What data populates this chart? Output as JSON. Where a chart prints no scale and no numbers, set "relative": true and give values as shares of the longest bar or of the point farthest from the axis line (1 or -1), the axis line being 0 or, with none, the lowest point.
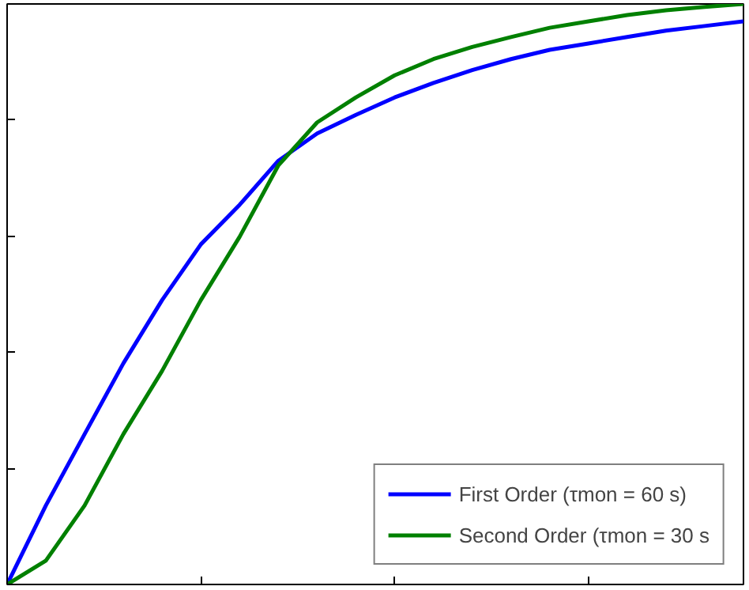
{
  "chart_data": {
    "type": "line",
    "relative": true,
    "tick_labels": false,
    "grid": false,
    "legend": "bottom right",
    "line_style": "solid",
    "categories": [
      null,
      null,
      null,
      null,
      null,
      null,
      null,
      null,
      null,
      null,
      null,
      null,
      null,
      null,
      null,
      null,
      null,
      null,
      null,
      null
    ],
    "series": [
      {
        "name": "First Order (τmon = 60 s)",
        "color": "#0000ff",
        "values": [
          0,
          0.136,
          0.259,
          0.381,
          0.49,
          0.586,
          0.654,
          0.73,
          0.777,
          0.809,
          0.839,
          0.864,
          0.886,
          0.905,
          0.921,
          0.932,
          0.943,
          0.954,
          0.962,
          0.97
        ]
      },
      {
        "name": "Second Order (τmon = 30 s",
        "color": "#008000",
        "values": [
          0,
          0.041,
          0.136,
          0.259,
          0.368,
          0.49,
          0.599,
          0.722,
          0.796,
          0.839,
          0.877,
          0.905,
          0.926,
          0.943,
          0.959,
          0.97,
          0.981,
          0.989,
          0.995,
          1
        ]
      }
    ]
  }
}
